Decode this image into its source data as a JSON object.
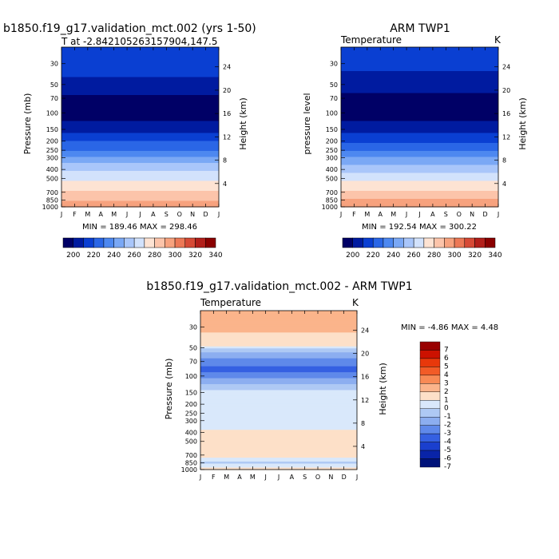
{
  "figure_title": "b1850.f19_g17.validation_mct.002 - ARM TWP1",
  "panels": {
    "model": {
      "title": "b1850.f19_g17.validation_mct.002 (yrs 1-50)",
      "subtitle": "T at -2.842105263157904,147.5",
      "ylabel": "Pressure (mb)",
      "ylabel_right": "Height (km)",
      "minmax": "MIN = 189.46 MAX = 298.46"
    },
    "obs": {
      "title": "ARM TWP1",
      "subtitle": "Temperature",
      "units": "K",
      "ylabel": "pressure level",
      "ylabel_right": "Height (km)",
      "minmax": "MIN = 192.54 MAX = 300.22"
    },
    "diff": {
      "subtitle": "Temperature",
      "units": "K",
      "ylabel": "Pressure (mb)",
      "ylabel_right": "Height (km)",
      "minmax": "MIN =   -4.86 MAX =    4.48"
    }
  },
  "chart_data": [
    {
      "type": "heatmap",
      "panel": "model",
      "x": [
        "J",
        "F",
        "M",
        "A",
        "M",
        "J",
        "J",
        "A",
        "S",
        "O",
        "N",
        "D",
        "J"
      ],
      "y_pressure_ticks": [
        30,
        50,
        70,
        100,
        150,
        200,
        250,
        300,
        400,
        500,
        700,
        850,
        1000
      ],
      "y_height_ticks_km": [
        4,
        8,
        12,
        16,
        20,
        24
      ],
      "ylim_mb": [
        1000,
        20
      ],
      "min": 189.46,
      "max": 298.46,
      "colorbar_ticks": [
        200,
        220,
        240,
        260,
        280,
        300,
        320,
        340
      ],
      "profile": [
        {
          "p": 20,
          "t": 213
        },
        {
          "p": 30,
          "t": 213
        },
        {
          "p": 50,
          "t": 208
        },
        {
          "p": 70,
          "t": 198
        },
        {
          "p": 100,
          "t": 192
        },
        {
          "p": 150,
          "t": 207
        },
        {
          "p": 200,
          "t": 220
        },
        {
          "p": 250,
          "t": 230
        },
        {
          "p": 300,
          "t": 242
        },
        {
          "p": 400,
          "t": 258
        },
        {
          "p": 500,
          "t": 268
        },
        {
          "p": 700,
          "t": 282
        },
        {
          "p": 850,
          "t": 290
        },
        {
          "p": 1000,
          "t": 298
        }
      ]
    },
    {
      "type": "heatmap",
      "panel": "obs",
      "x": [
        "J",
        "F",
        "M",
        "A",
        "M",
        "J",
        "J",
        "A",
        "S",
        "O",
        "N",
        "D",
        "J"
      ],
      "y_pressure_ticks": [
        30,
        50,
        70,
        100,
        150,
        200,
        250,
        300,
        400,
        500,
        700,
        850,
        1000
      ],
      "y_height_ticks_km": [
        4,
        8,
        12,
        16,
        20,
        24
      ],
      "ylim_mb": [
        1000,
        20
      ],
      "min": 192.54,
      "max": 300.22,
      "colorbar_ticks": [
        200,
        220,
        240,
        260,
        280,
        300,
        320,
        340
      ],
      "profile": [
        {
          "p": 20,
          "t": 214
        },
        {
          "p": 30,
          "t": 212
        },
        {
          "p": 50,
          "t": 206
        },
        {
          "p": 70,
          "t": 197
        },
        {
          "p": 100,
          "t": 193
        },
        {
          "p": 150,
          "t": 207
        },
        {
          "p": 200,
          "t": 219
        },
        {
          "p": 250,
          "t": 230
        },
        {
          "p": 300,
          "t": 241
        },
        {
          "p": 400,
          "t": 257
        },
        {
          "p": 500,
          "t": 267
        },
        {
          "p": 700,
          "t": 282
        },
        {
          "p": 850,
          "t": 291
        },
        {
          "p": 1000,
          "t": 300
        }
      ]
    },
    {
      "type": "heatmap",
      "panel": "diff",
      "x": [
        "J",
        "F",
        "M",
        "A",
        "M",
        "J",
        "J",
        "A",
        "S",
        "O",
        "N",
        "D",
        "J"
      ],
      "y_pressure_ticks": [
        30,
        50,
        70,
        100,
        150,
        200,
        250,
        300,
        400,
        500,
        700,
        850,
        1000
      ],
      "y_height_ticks_km": [
        4,
        8,
        12,
        16,
        20,
        24
      ],
      "ylim_mb": [
        1000,
        20
      ],
      "min": -4.86,
      "max": 4.48,
      "colorbar_labels": [
        7,
        6,
        5,
        4,
        3,
        2,
        1,
        0,
        -1,
        -2,
        -3,
        -4,
        -5,
        -6,
        -7
      ],
      "profile": [
        {
          "p": 20,
          "t": 2.5
        },
        {
          "p": 30,
          "t": 2.0
        },
        {
          "p": 45,
          "t": 0.5
        },
        {
          "p": 60,
          "t": -2.0
        },
        {
          "p": 85,
          "t": -4.0
        },
        {
          "p": 110,
          "t": -2.0
        },
        {
          "p": 140,
          "t": -0.5
        },
        {
          "p": 300,
          "t": -0.3
        },
        {
          "p": 450,
          "t": 0.2
        },
        {
          "p": 550,
          "t": 0.8
        },
        {
          "p": 700,
          "t": 0.2
        },
        {
          "p": 850,
          "t": -0.6
        },
        {
          "p": 1000,
          "t": 0.4
        }
      ]
    }
  ],
  "colors": {
    "temperature_scale": [
      "#000066",
      "#001ba0",
      "#0a3fd2",
      "#2a66e6",
      "#4d88f0",
      "#7aa8f5",
      "#a9c6fa",
      "#d2e2fc",
      "#fde3d3",
      "#fcc4aa",
      "#f7a27e",
      "#ec7856",
      "#d64a36",
      "#b21f1a",
      "#8a0000"
    ],
    "diff_scale": [
      "#990000",
      "#cc1100",
      "#e8380b",
      "#f25b27",
      "#f88a55",
      "#fbb48b",
      "#fde0c8",
      "#d9e8fb",
      "#aec9f4",
      "#8caef0",
      "#5f89ea",
      "#3560e2",
      "#1a3fce",
      "#0924a8",
      "#00127a"
    ]
  }
}
